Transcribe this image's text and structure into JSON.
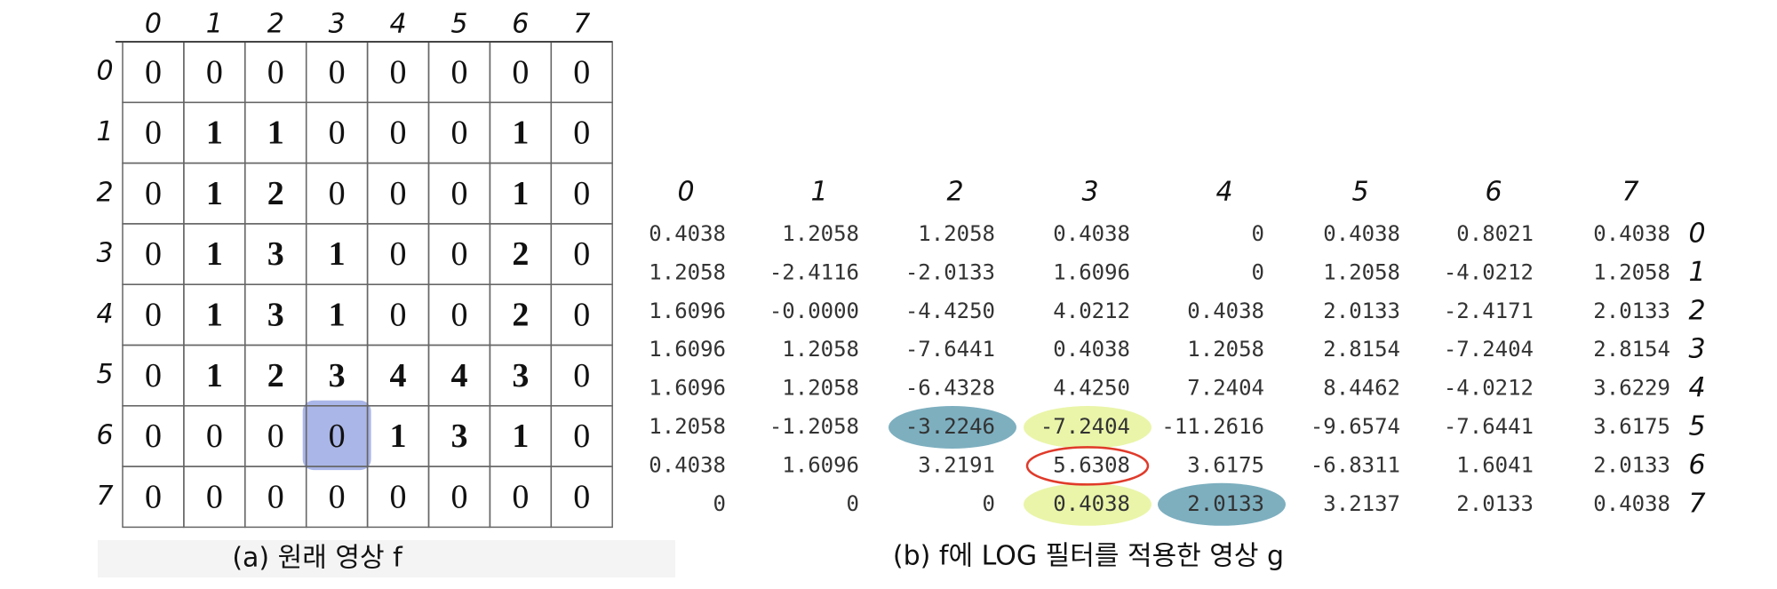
{
  "table_a": {
    "col_headers": [
      "0",
      "1",
      "2",
      "3",
      "4",
      "5",
      "6",
      "7"
    ],
    "row_headers": [
      "0",
      "1",
      "2",
      "3",
      "4",
      "5",
      "6",
      "7"
    ],
    "rows": [
      [
        "0",
        "0",
        "0",
        "0",
        "0",
        "0",
        "0",
        "0"
      ],
      [
        "0",
        "1",
        "1",
        "0",
        "0",
        "0",
        "1",
        "0"
      ],
      [
        "0",
        "1",
        "2",
        "0",
        "0",
        "0",
        "1",
        "0"
      ],
      [
        "0",
        "1",
        "3",
        "1",
        "0",
        "0",
        "2",
        "0"
      ],
      [
        "0",
        "1",
        "3",
        "1",
        "0",
        "0",
        "2",
        "0"
      ],
      [
        "0",
        "1",
        "2",
        "3",
        "4",
        "4",
        "3",
        "0"
      ],
      [
        "0",
        "0",
        "0",
        "0",
        "1",
        "3",
        "1",
        "0"
      ],
      [
        "0",
        "0",
        "0",
        "0",
        "0",
        "0",
        "0",
        "0"
      ]
    ],
    "caption": "(a) 원래 영상 f"
  },
  "table_b": {
    "col_headers": [
      "0",
      "1",
      "2",
      "3",
      "4",
      "5",
      "6",
      "7"
    ],
    "row_headers": [
      "0",
      "1",
      "2",
      "3",
      "4",
      "5",
      "6",
      "7"
    ],
    "rows": [
      [
        "0.4038",
        "1.2058",
        "1.2058",
        "0.4038",
        "0",
        "0.4038",
        "0.8021",
        "0.4038"
      ],
      [
        "1.2058",
        "-2.4116",
        "-2.0133",
        "1.6096",
        "0",
        "1.2058",
        "-4.0212",
        "1.2058"
      ],
      [
        "1.6096",
        "-0.0000",
        "-4.4250",
        "4.0212",
        "0.4038",
        "2.0133",
        "-2.4171",
        "2.0133"
      ],
      [
        "1.6096",
        "1.2058",
        "-7.6441",
        "0.4038",
        "1.2058",
        "2.8154",
        "-7.2404",
        "2.8154"
      ],
      [
        "1.6096",
        "1.2058",
        "-6.4328",
        "4.4250",
        "7.2404",
        "8.4462",
        "-4.0212",
        "3.6229"
      ],
      [
        "1.2058",
        "-1.2058",
        "-3.2246",
        "-7.2404",
        "-11.2616",
        "-9.6574",
        "-7.6441",
        "3.6175"
      ],
      [
        "0.4038",
        "1.6096",
        "3.2191",
        "5.6308",
        "3.6175",
        "-6.8311",
        "1.6041",
        "2.0133"
      ],
      [
        "0",
        "0",
        "0",
        "0.4038",
        "2.0133",
        "3.2137",
        "2.0133",
        "0.4038"
      ]
    ],
    "caption": "(b) f에 LOG 필터를 적용한 영상 g"
  }
}
